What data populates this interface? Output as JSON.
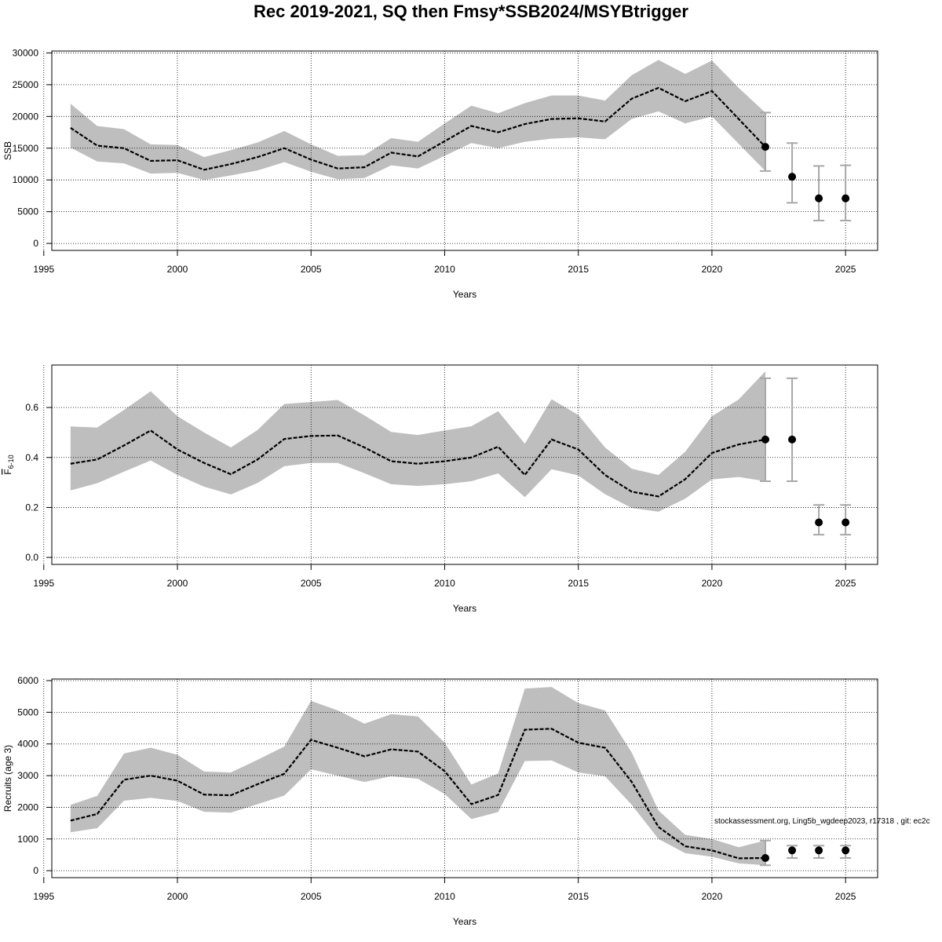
{
  "title": "Rec 2019-2021, SQ then Fmsy*SSB2024/MSYBtrigger",
  "credit": "stockassessment.org, Ling5b_wgdeep2023, r17318 , git: ec2c",
  "colors": {
    "band": "#bebebe",
    "line": "#000000",
    "point": "#000000",
    "errorbar": "#a8a8a8",
    "grid": "#000000"
  },
  "chart_data": [
    {
      "type": "line",
      "ylabel": "SSB",
      "xlabel": "Years",
      "x_ticks": [
        1995,
        2000,
        2005,
        2010,
        2015,
        2020,
        2025
      ],
      "y_ticks": [
        0,
        5000,
        10000,
        15000,
        20000,
        25000,
        30000
      ],
      "xlim": [
        1995.3,
        2026.2
      ],
      "ylim": [
        -1100,
        30300
      ],
      "grid": true,
      "series": [
        {
          "role": "estimate",
          "x": [
            1996,
            1997,
            1998,
            1999,
            2000,
            2001,
            2002,
            2003,
            2004,
            2005,
            2006,
            2007,
            2008,
            2009,
            2010,
            2011,
            2012,
            2013,
            2014,
            2015,
            2016,
            2017,
            2018,
            2019,
            2020,
            2021,
            2022
          ],
          "y": [
            18200,
            15400,
            15000,
            13000,
            13100,
            11600,
            12500,
            13600,
            15000,
            13200,
            11800,
            12000,
            14300,
            13700,
            16100,
            18500,
            17500,
            18800,
            19600,
            19700,
            19200,
            22800,
            24500,
            22400,
            24000,
            19600,
            15200
          ],
          "lower": [
            15100,
            12900,
            12600,
            11000,
            11100,
            10000,
            10700,
            11500,
            12800,
            11300,
            10100,
            10300,
            12300,
            11800,
            13800,
            15800,
            15000,
            16000,
            16500,
            16700,
            16400,
            19600,
            20800,
            18900,
            20000,
            15700,
            11400
          ],
          "upper": [
            22000,
            18500,
            18000,
            15600,
            15500,
            13600,
            14700,
            15900,
            17700,
            15600,
            13800,
            13900,
            16600,
            16000,
            18900,
            21700,
            20500,
            22100,
            23300,
            23300,
            22500,
            26500,
            28900,
            26700,
            28800,
            24500,
            20600
          ]
        },
        {
          "role": "forecast",
          "x": [
            2022,
            2023,
            2024,
            2025
          ],
          "y": [
            15200,
            10500,
            7100,
            7100
          ],
          "lower": [
            11400,
            6400,
            3600,
            3600
          ],
          "upper": [
            20600,
            15800,
            12200,
            12300
          ]
        }
      ]
    },
    {
      "type": "line",
      "ylabel": "F6-10",
      "xlabel": "Years",
      "x_ticks": [
        1995,
        2000,
        2005,
        2010,
        2015,
        2020,
        2025
      ],
      "y_ticks": [
        0.0,
        0.2,
        0.4,
        0.6
      ],
      "y_tick_labels": [
        "0.0",
        "0.2",
        "0.4",
        "0.6"
      ],
      "xlim": [
        1995.3,
        2026.2
      ],
      "ylim": [
        -0.028,
        0.77
      ],
      "grid": true,
      "series": [
        {
          "role": "estimate",
          "x": [
            1996,
            1997,
            1998,
            1999,
            2000,
            2001,
            2002,
            2003,
            2004,
            2005,
            2006,
            2007,
            2008,
            2009,
            2010,
            2011,
            2012,
            2013,
            2014,
            2015,
            2016,
            2017,
            2018,
            2019,
            2020,
            2021,
            2022
          ],
          "y": [
            0.375,
            0.392,
            0.448,
            0.508,
            0.432,
            0.378,
            0.333,
            0.392,
            0.474,
            0.486,
            0.488,
            0.44,
            0.385,
            0.375,
            0.385,
            0.4,
            0.443,
            0.33,
            0.472,
            0.432,
            0.33,
            0.263,
            0.244,
            0.313,
            0.418,
            0.452,
            0.472
          ],
          "lower": [
            0.268,
            0.297,
            0.343,
            0.388,
            0.33,
            0.283,
            0.252,
            0.298,
            0.365,
            0.378,
            0.378,
            0.337,
            0.293,
            0.286,
            0.293,
            0.305,
            0.336,
            0.241,
            0.353,
            0.328,
            0.253,
            0.198,
            0.183,
            0.235,
            0.312,
            0.322,
            0.305
          ],
          "upper": [
            0.524,
            0.52,
            0.59,
            0.665,
            0.565,
            0.5,
            0.44,
            0.51,
            0.614,
            0.622,
            0.63,
            0.568,
            0.502,
            0.49,
            0.508,
            0.525,
            0.585,
            0.455,
            0.633,
            0.57,
            0.44,
            0.355,
            0.33,
            0.423,
            0.565,
            0.632,
            0.745
          ]
        },
        {
          "role": "forecast",
          "x": [
            2022,
            2023,
            2024,
            2025
          ],
          "y": [
            0.472,
            0.472,
            0.14,
            0.14
          ],
          "lower": [
            0.305,
            0.305,
            0.091,
            0.091
          ],
          "upper": [
            0.717,
            0.717,
            0.21,
            0.21
          ]
        }
      ]
    },
    {
      "type": "line",
      "ylabel": "Recruits (age 3)",
      "xlabel": "Years",
      "x_ticks": [
        1995,
        2000,
        2005,
        2010,
        2015,
        2020,
        2025
      ],
      "y_ticks": [
        0,
        1000,
        2000,
        3000,
        4000,
        5000,
        6000
      ],
      "xlim": [
        1995.3,
        2026.2
      ],
      "ylim": [
        -220,
        6050
      ],
      "grid": true,
      "series": [
        {
          "role": "estimate",
          "x": [
            1996,
            1997,
            1998,
            1999,
            2000,
            2001,
            2002,
            2003,
            2004,
            2005,
            2006,
            2007,
            2008,
            2009,
            2010,
            2011,
            2012,
            2013,
            2014,
            2015,
            2016,
            2017,
            2018,
            2019,
            2020,
            2021,
            2022
          ],
          "y": [
            1580,
            1790,
            2870,
            3000,
            2840,
            2400,
            2380,
            2730,
            3060,
            4130,
            3880,
            3610,
            3830,
            3760,
            3140,
            2100,
            2390,
            4450,
            4480,
            4040,
            3880,
            2800,
            1380,
            770,
            640,
            390,
            400
          ],
          "lower": [
            1210,
            1340,
            2210,
            2300,
            2200,
            1860,
            1830,
            2100,
            2370,
            3200,
            3000,
            2800,
            2980,
            2900,
            2420,
            1630,
            1850,
            3460,
            3480,
            3100,
            2980,
            2080,
            1000,
            550,
            440,
            230,
            170
          ],
          "upper": [
            2080,
            2360,
            3700,
            3880,
            3660,
            3130,
            3100,
            3500,
            3920,
            5360,
            5060,
            4640,
            4940,
            4870,
            4040,
            2720,
            3070,
            5750,
            5800,
            5290,
            5060,
            3730,
            1900,
            1130,
            1000,
            740,
            950
          ]
        },
        {
          "role": "forecast",
          "x": [
            2022,
            2023,
            2024,
            2025
          ],
          "y": [
            400,
            640,
            640,
            640
          ],
          "lower": [
            170,
            400,
            400,
            400
          ],
          "upper": [
            950,
            790,
            790,
            790
          ]
        }
      ]
    }
  ]
}
